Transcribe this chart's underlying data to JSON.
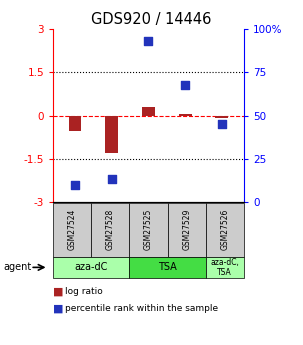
{
  "title": "GDS920 / 14446",
  "samples": [
    "GSM27524",
    "GSM27528",
    "GSM27525",
    "GSM27529",
    "GSM27526"
  ],
  "log_ratios": [
    -0.55,
    -1.3,
    0.3,
    0.07,
    -0.08
  ],
  "percentile_ranks": [
    10,
    13,
    93,
    68,
    45
  ],
  "ylim_left": [
    -3,
    3
  ],
  "yticks_left": [
    -3,
    -1.5,
    0,
    1.5,
    3
  ],
  "yticks_right": [
    0,
    25,
    50,
    75,
    100
  ],
  "yticklabels_right": [
    "0",
    "25",
    "50",
    "75",
    "100%"
  ],
  "bar_color": "#aa2222",
  "dot_color": "#2233bb",
  "bar_width": 0.35,
  "dot_size": 40,
  "background_color": "#ffffff",
  "sample_box_color": "#cccccc",
  "agent_defs": [
    {
      "label": "aza-dC",
      "start": 0,
      "end": 2,
      "color": "#aaffaa"
    },
    {
      "label": "TSA",
      "start": 2,
      "end": 4,
      "color": "#44dd44"
    },
    {
      "label": "aza-dC,\nTSA",
      "start": 4,
      "end": 5,
      "color": "#aaffaa"
    }
  ]
}
